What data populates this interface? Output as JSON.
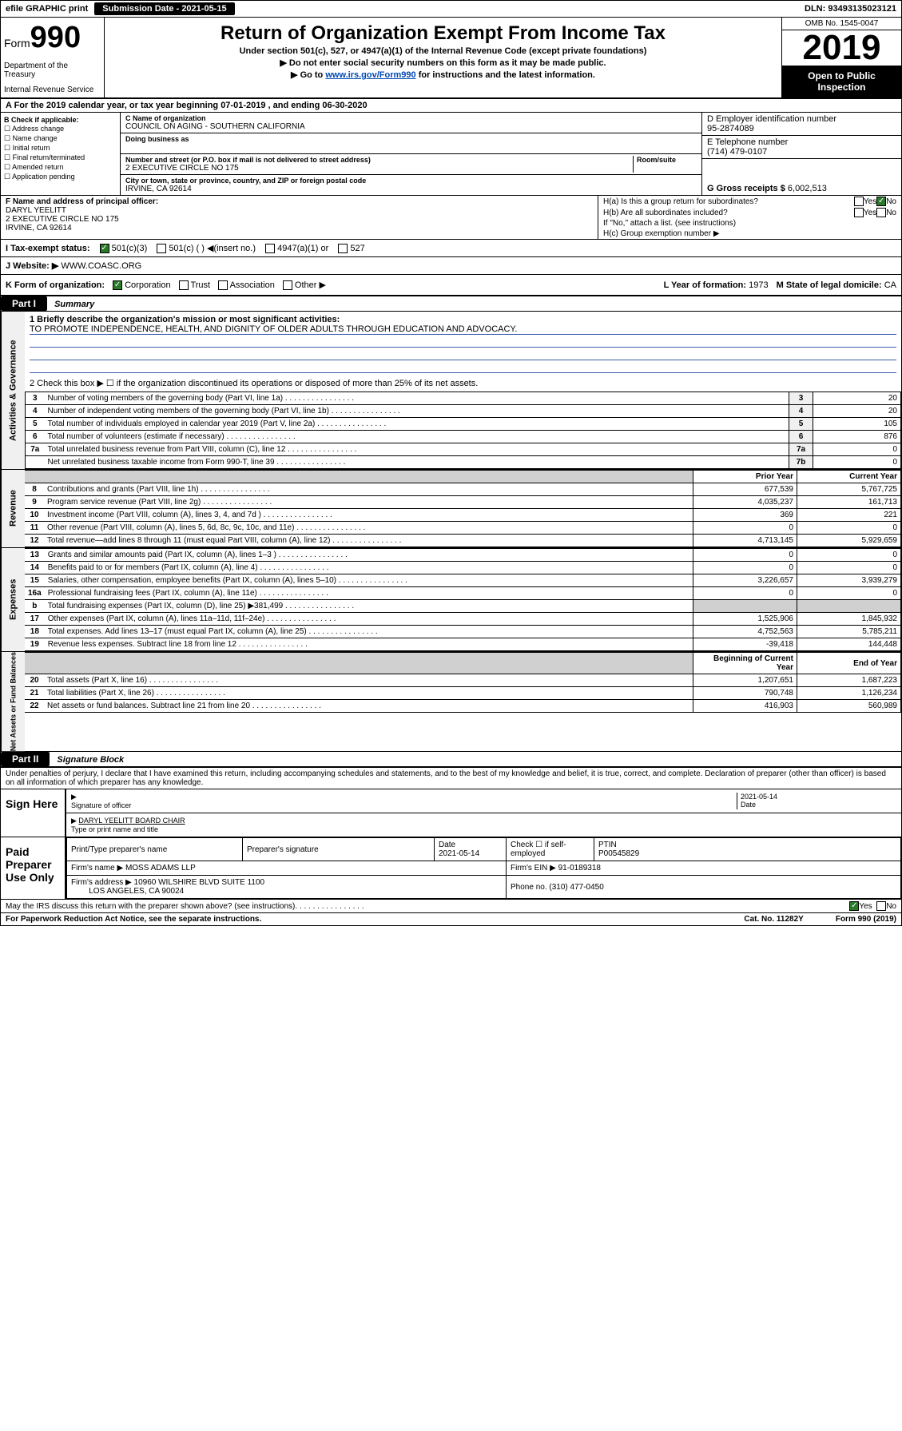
{
  "topbar": {
    "efile": "efile GRAPHIC print",
    "submission_label": "Submission Date - 2021-05-15",
    "dln_label": "DLN: 93493135023121"
  },
  "header": {
    "form": "Form",
    "form_num": "990",
    "dept1": "Department of the Treasury",
    "dept2": "Internal Revenue Service",
    "title": "Return of Organization Exempt From Income Tax",
    "sub1": "Under section 501(c), 527, or 4947(a)(1) of the Internal Revenue Code (except private foundations)",
    "sub2": "▶ Do not enter social security numbers on this form as it may be made public.",
    "sub3a": "▶ Go to ",
    "sub3_link": "www.irs.gov/Form990",
    "sub3b": " for instructions and the latest information.",
    "omb": "OMB No. 1545-0047",
    "year": "2019",
    "open_pub": "Open to Public Inspection"
  },
  "section_a": "A For the 2019 calendar year, or tax year beginning 07-01-2019    , and ending 06-30-2020",
  "col_b": {
    "header": "B Check if applicable:",
    "items": [
      "Address change",
      "Name change",
      "Initial return",
      "Final return/terminated",
      "Amended return",
      "Application pending"
    ]
  },
  "col_c": {
    "name_lab": "C Name of organization",
    "name_val": "COUNCIL ON AGING - SOUTHERN CALIFORNIA",
    "dba_lab": "Doing business as",
    "addr_lab": "Number and street (or P.O. box if mail is not delivered to street address)",
    "room_lab": "Room/suite",
    "addr_val": "2 EXECUTIVE CIRCLE NO 175",
    "city_lab": "City or town, state or province, country, and ZIP or foreign postal code",
    "city_val": "IRVINE, CA  92614"
  },
  "col_d": {
    "ein_lab": "D Employer identification number",
    "ein_val": "95-2874089",
    "phone_lab": "E Telephone number",
    "phone_val": "(714) 479-0107",
    "gross_lab": "G Gross receipts $",
    "gross_val": "6,002,513"
  },
  "col_f": {
    "lab": "F Name and address of principal officer:",
    "name": "DARYL YEELITT",
    "addr1": "2 EXECUTIVE CIRCLE NO 175",
    "addr2": "IRVINE, CA  92614"
  },
  "col_h": {
    "ha": "H(a)  Is this a group return for subordinates?",
    "hb": "H(b)  Are all subordinates included?",
    "hb2": "If \"No,\" attach a list. (see instructions)",
    "hc": "H(c)  Group exemption number ▶",
    "yes": "Yes",
    "no": "No"
  },
  "tax_status": {
    "lab": "I   Tax-exempt status:",
    "c3": "501(c)(3)",
    "c": "501(c) (  ) ◀(insert no.)",
    "a1": "4947(a)(1) or",
    "s527": "527"
  },
  "website": {
    "lab": "J   Website: ▶",
    "val": "WWW.COASC.ORG"
  },
  "row_k": {
    "lab": "K Form of organization:",
    "corp": "Corporation",
    "trust": "Trust",
    "assoc": "Association",
    "other": "Other ▶",
    "l_lab": "L Year of formation:",
    "l_val": "1973",
    "m_lab": "M State of legal domicile:",
    "m_val": "CA"
  },
  "part1": {
    "hdr": "Part I",
    "title": "Summary"
  },
  "gov": {
    "tab": "Activities & Governance",
    "q1": "1  Briefly describe the organization's mission or most significant activities:",
    "mission": "TO PROMOTE INDEPENDENCE, HEALTH, AND DIGNITY OF OLDER ADULTS THROUGH EDUCATION AND ADVOCACY.",
    "q2": "2   Check this box ▶ ☐  if the organization discontinued its operations or disposed of more than 25% of its net assets.",
    "rows": [
      {
        "n": "3",
        "d": "Number of voting members of the governing body (Part VI, line 1a)",
        "b": "3",
        "v": "20"
      },
      {
        "n": "4",
        "d": "Number of independent voting members of the governing body (Part VI, line 1b)",
        "b": "4",
        "v": "20"
      },
      {
        "n": "5",
        "d": "Total number of individuals employed in calendar year 2019 (Part V, line 2a)",
        "b": "5",
        "v": "105"
      },
      {
        "n": "6",
        "d": "Total number of volunteers (estimate if necessary)",
        "b": "6",
        "v": "876"
      },
      {
        "n": "7a",
        "d": "Total unrelated business revenue from Part VIII, column (C), line 12",
        "b": "7a",
        "v": "0"
      },
      {
        "n": "",
        "d": "Net unrelated business taxable income from Form 990-T, line 39",
        "b": "7b",
        "v": "0"
      }
    ]
  },
  "rev": {
    "tab": "Revenue",
    "py_hdr": "Prior Year",
    "cy_hdr": "Current Year",
    "rows": [
      {
        "n": "8",
        "d": "Contributions and grants (Part VIII, line 1h)",
        "py": "677,539",
        "cy": "5,767,725"
      },
      {
        "n": "9",
        "d": "Program service revenue (Part VIII, line 2g)",
        "py": "4,035,237",
        "cy": "161,713"
      },
      {
        "n": "10",
        "d": "Investment income (Part VIII, column (A), lines 3, 4, and 7d )",
        "py": "369",
        "cy": "221"
      },
      {
        "n": "11",
        "d": "Other revenue (Part VIII, column (A), lines 5, 6d, 8c, 9c, 10c, and 11e)",
        "py": "0",
        "cy": "0"
      },
      {
        "n": "12",
        "d": "Total revenue—add lines 8 through 11 (must equal Part VIII, column (A), line 12)",
        "py": "4,713,145",
        "cy": "5,929,659"
      }
    ]
  },
  "exp": {
    "tab": "Expenses",
    "rows": [
      {
        "n": "13",
        "d": "Grants and similar amounts paid (Part IX, column (A), lines 1–3 )",
        "py": "0",
        "cy": "0"
      },
      {
        "n": "14",
        "d": "Benefits paid to or for members (Part IX, column (A), line 4)",
        "py": "0",
        "cy": "0"
      },
      {
        "n": "15",
        "d": "Salaries, other compensation, employee benefits (Part IX, column (A), lines 5–10)",
        "py": "3,226,657",
        "cy": "3,939,279"
      },
      {
        "n": "16a",
        "d": "Professional fundraising fees (Part IX, column (A), line 11e)",
        "py": "0",
        "cy": "0"
      },
      {
        "n": "b",
        "d": "Total fundraising expenses (Part IX, column (D), line 25) ▶381,499",
        "py": "shade",
        "cy": "shade"
      },
      {
        "n": "17",
        "d": "Other expenses (Part IX, column (A), lines 11a–11d, 11f–24e)",
        "py": "1,525,906",
        "cy": "1,845,932"
      },
      {
        "n": "18",
        "d": "Total expenses. Add lines 13–17 (must equal Part IX, column (A), line 25)",
        "py": "4,752,563",
        "cy": "5,785,211"
      },
      {
        "n": "19",
        "d": "Revenue less expenses. Subtract line 18 from line 12",
        "py": "-39,418",
        "cy": "144,448"
      }
    ]
  },
  "net": {
    "tab": "Net Assets or Fund Balances",
    "bcy_hdr": "Beginning of Current Year",
    "eoy_hdr": "End of Year",
    "rows": [
      {
        "n": "20",
        "d": "Total assets (Part X, line 16)",
        "py": "1,207,651",
        "cy": "1,687,223"
      },
      {
        "n": "21",
        "d": "Total liabilities (Part X, line 26)",
        "py": "790,748",
        "cy": "1,126,234"
      },
      {
        "n": "22",
        "d": "Net assets or fund balances. Subtract line 21 from line 20",
        "py": "416,903",
        "cy": "560,989"
      }
    ]
  },
  "part2": {
    "hdr": "Part II",
    "title": "Signature Block",
    "intro": "Under penalties of perjury, I declare that I have examined this return, including accompanying schedules and statements, and to the best of my knowledge and belief, it is true, correct, and complete. Declaration of preparer (other than officer) is based on all information of which preparer has any knowledge."
  },
  "sign": {
    "lab": "Sign Here",
    "sig_lab": "Signature of officer",
    "date": "2021-05-14",
    "date_lab": "Date",
    "name": "DARYL YEELITT  BOARD CHAIR",
    "name_lab": "Type or print name and title"
  },
  "paid": {
    "lab": "Paid Preparer Use Only",
    "h1": "Print/Type preparer's name",
    "h2": "Preparer's signature",
    "h3": "Date",
    "date": "2021-05-14",
    "h4": "Check ☐ if self-employed",
    "h5": "PTIN",
    "ptin": "P00545829",
    "firm_lab": "Firm's name     ▶",
    "firm": "MOSS ADAMS LLP",
    "ein_lab": "Firm's EIN ▶",
    "ein": "91-0189318",
    "addr_lab": "Firm's address ▶",
    "addr1": "10960 WILSHIRE BLVD SUITE 1100",
    "addr2": "LOS ANGELES, CA  90024",
    "phone_lab": "Phone no.",
    "phone": "(310) 477-0450"
  },
  "footer": {
    "discuss": "May the IRS discuss this return with the preparer shown above? (see instructions)",
    "yes": "Yes",
    "no": "No",
    "pra": "For Paperwork Reduction Act Notice, see the separate instructions.",
    "cat": "Cat. No. 11282Y",
    "form": "Form 990 (2019)"
  }
}
